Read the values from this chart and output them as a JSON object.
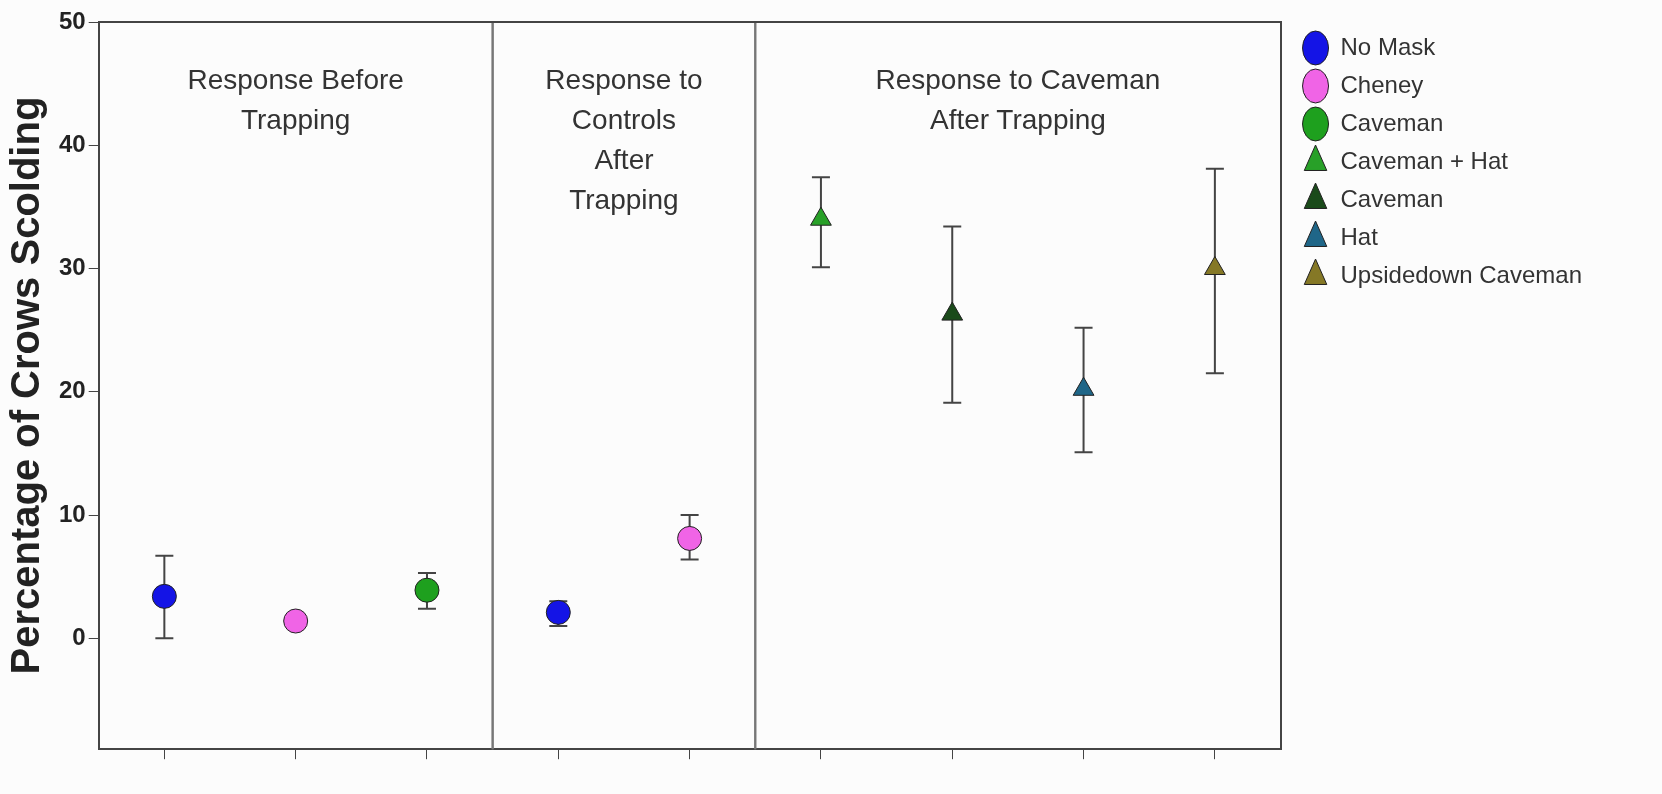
{
  "chart_data": {
    "type": "scatter",
    "ylabel": "Percentage of Crows Scolding",
    "categories": [
      null,
      null,
      null,
      null,
      null,
      null,
      null,
      null,
      null
    ],
    "ylim": [
      -9,
      50
    ],
    "yticks": [
      0,
      10,
      20,
      30,
      40,
      50
    ],
    "grid": false,
    "legend": "right",
    "series": [
      {
        "name": "No Mask",
        "color": "#1414e6",
        "marker": "circle",
        "values": [
          3.4,
          null,
          null,
          2.1,
          null,
          null,
          null,
          null,
          null
        ],
        "errors": [
          [
            0,
            6.7
          ],
          null,
          null,
          [
            1,
            3
          ],
          null,
          null,
          null,
          null,
          null
        ]
      },
      {
        "name": "Cheney",
        "color": "#f064e6",
        "marker": "circle",
        "values": [
          null,
          1.4,
          null,
          null,
          8.1,
          null,
          null,
          null,
          null
        ],
        "errors": [
          null,
          null,
          null,
          null,
          [
            6.4,
            10
          ],
          null,
          null,
          null,
          null
        ]
      },
      {
        "name": "Caveman",
        "color": "#1ea01e",
        "marker": "circle",
        "values": [
          null,
          null,
          3.9,
          null,
          null,
          null,
          null,
          null,
          null
        ],
        "errors": [
          null,
          null,
          [
            2.4,
            5.3
          ],
          null,
          null,
          null,
          null,
          null,
          null
        ]
      },
      {
        "name": "Caveman + Hat",
        "color": "#28a028",
        "marker": "triangle",
        "values": [
          null,
          null,
          null,
          null,
          null,
          34,
          null,
          null,
          null
        ],
        "errors": [
          null,
          null,
          null,
          null,
          null,
          [
            30.1,
            37.4
          ],
          null,
          null,
          null
        ]
      },
      {
        "name": "Caveman",
        "color": "#1a4a1a",
        "marker": "triangle",
        "values": [
          null,
          null,
          null,
          null,
          null,
          null,
          26.3,
          null,
          null
        ],
        "errors": [
          null,
          null,
          null,
          null,
          null,
          null,
          [
            19.1,
            33.4
          ],
          null,
          null
        ]
      },
      {
        "name": "Hat",
        "color": "#1f6688",
        "marker": "triangle",
        "values": [
          null,
          null,
          null,
          null,
          null,
          null,
          null,
          20.2,
          null
        ],
        "errors": [
          null,
          null,
          null,
          null,
          null,
          null,
          null,
          [
            15.1,
            25.2
          ],
          null
        ]
      },
      {
        "name": "Upsidedown Caveman",
        "color": "#857826",
        "marker": "triangle",
        "values": [
          null,
          null,
          null,
          null,
          null,
          null,
          null,
          null,
          30
        ],
        "errors": [
          null,
          null,
          null,
          null,
          null,
          null,
          null,
          null,
          [
            21.5,
            38.1
          ]
        ]
      }
    ],
    "annotations": [
      "Response Before Trapping",
      "Response to Controls After Trapping",
      "Response to Caveman After Trapping"
    ]
  }
}
